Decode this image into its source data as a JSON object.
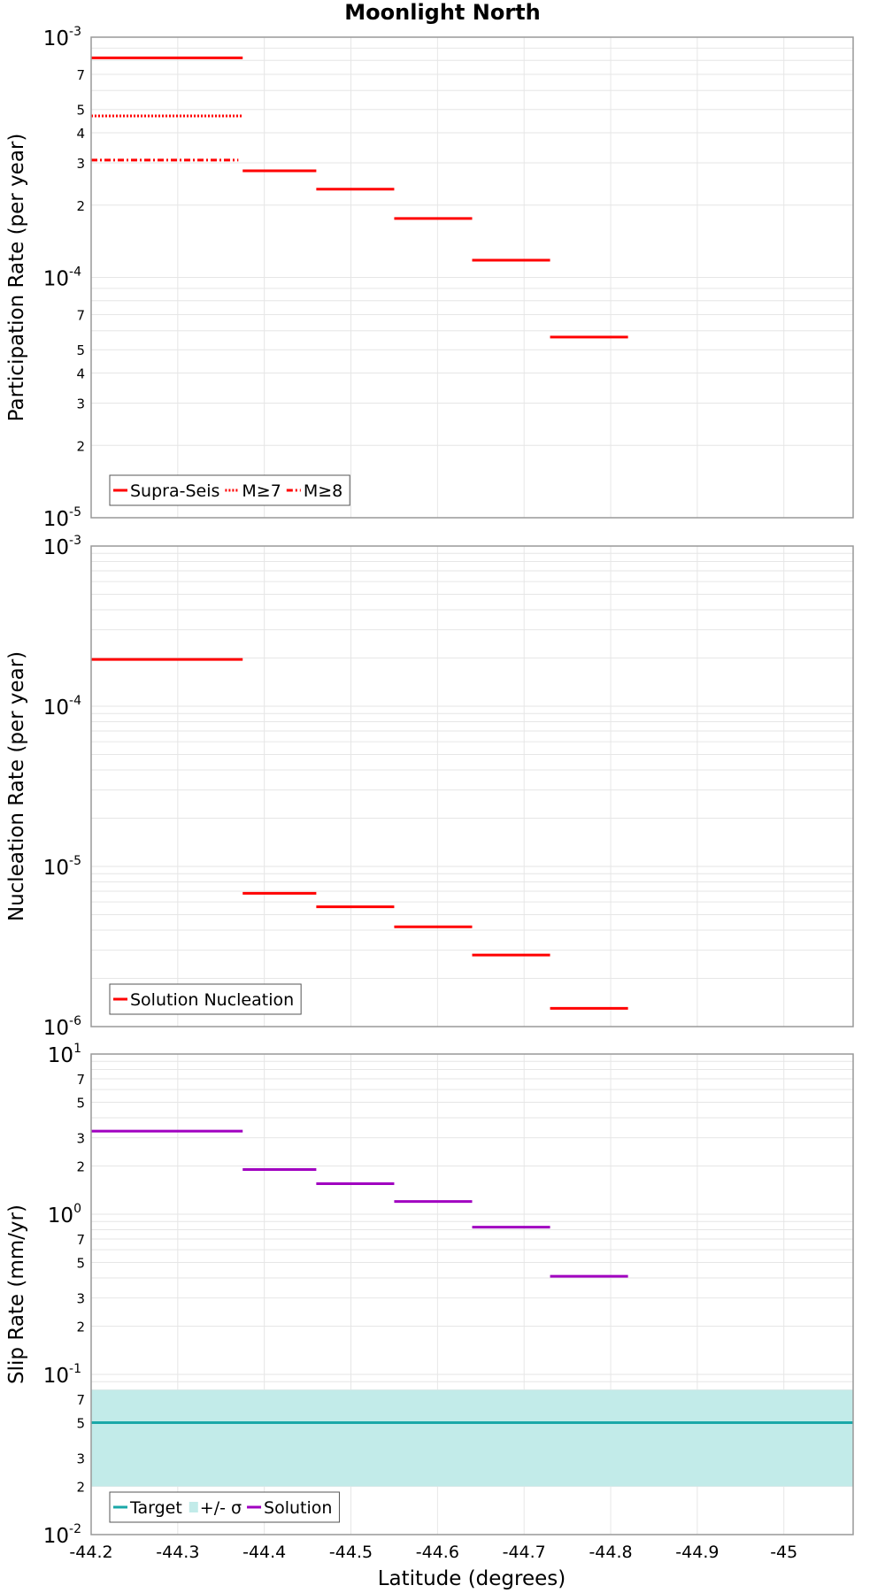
{
  "figure": {
    "title": "Moonlight North",
    "xlabel": "Latitude (degrees)",
    "x_ticks": [
      "-44.2",
      "-44.3",
      "-44.4",
      "-44.5",
      "-44.6",
      "-44.7",
      "-44.8",
      "-44.9",
      "-45"
    ]
  },
  "chart_data": [
    {
      "type": "line",
      "ylabel": "Participation Rate (per year)",
      "y_scale": "log",
      "xlim": [
        -44.2,
        -45.08
      ],
      "ylim": [
        1e-05,
        0.001
      ],
      "grid": true,
      "legend_position": "bottom-left",
      "major_ticks": [
        {
          "base": "10",
          "exp": "-5",
          "v": 1e-05
        },
        {
          "base": "10",
          "exp": "-4",
          "v": 0.0001
        },
        {
          "base": "10",
          "exp": "-3",
          "v": 0.001
        }
      ],
      "minor_tick_labels": [
        2,
        3,
        4,
        5,
        7
      ],
      "series": [
        {
          "name": "Supra-Seis",
          "color": "#ff0000",
          "style": "solid",
          "segments": [
            {
              "x": [
                -44.2,
                -44.375
              ],
              "y": 0.00082
            },
            {
              "x": [
                -44.375,
                -44.46
              ],
              "y": 0.000278
            },
            {
              "x": [
                -44.46,
                -44.55
              ],
              "y": 0.000233
            },
            {
              "x": [
                -44.55,
                -44.64
              ],
              "y": 0.000176
            },
            {
              "x": [
                -44.64,
                -44.73
              ],
              "y": 0.000118
            },
            {
              "x": [
                -44.73,
                -44.82
              ],
              "y": 5.65e-05
            }
          ]
        },
        {
          "name": "M≥7",
          "color": "#ff0000",
          "style": "dotted",
          "segments": [
            {
              "x": [
                -44.2,
                -44.375
              ],
              "y": 0.00047
            }
          ]
        },
        {
          "name": "M≥8",
          "color": "#ff0000",
          "style": "dashdot",
          "segments": [
            {
              "x": [
                -44.2,
                -44.37
              ],
              "y": 0.000308
            }
          ]
        }
      ]
    },
    {
      "type": "line",
      "ylabel": "Nucleation Rate (per year)",
      "y_scale": "log",
      "xlim": [
        -44.2,
        -45.08
      ],
      "ylim": [
        1e-06,
        0.001
      ],
      "grid": true,
      "legend_position": "bottom-left",
      "major_ticks": [
        {
          "base": "10",
          "exp": "-6",
          "v": 1e-06
        },
        {
          "base": "10",
          "exp": "-5",
          "v": 1e-05
        },
        {
          "base": "10",
          "exp": "-4",
          "v": 0.0001
        },
        {
          "base": "10",
          "exp": "-3",
          "v": 0.001
        }
      ],
      "minor_tick_labels": [],
      "series": [
        {
          "name": "Solution Nucleation",
          "color": "#ff0000",
          "style": "solid",
          "segments": [
            {
              "x": [
                -44.2,
                -44.375
              ],
              "y": 0.000196
            },
            {
              "x": [
                -44.375,
                -44.46
              ],
              "y": 6.8e-06
            },
            {
              "x": [
                -44.46,
                -44.55
              ],
              "y": 5.6e-06
            },
            {
              "x": [
                -44.55,
                -44.64
              ],
              "y": 4.2e-06
            },
            {
              "x": [
                -44.64,
                -44.73
              ],
              "y": 2.8e-06
            },
            {
              "x": [
                -44.73,
                -44.82
              ],
              "y": 1.3e-06
            }
          ]
        }
      ]
    },
    {
      "type": "line",
      "ylabel": "Slip Rate (mm/yr)",
      "y_scale": "log",
      "xlim": [
        -44.2,
        -45.08
      ],
      "ylim": [
        0.01,
        10
      ],
      "grid": true,
      "legend_position": "bottom-left",
      "major_ticks": [
        {
          "base": "10",
          "exp": "-2",
          "v": 0.01
        },
        {
          "base": "10",
          "exp": "-1",
          "v": 0.1
        },
        {
          "base": "10",
          "exp": "0",
          "v": 1
        },
        {
          "base": "10",
          "exp": "1",
          "v": 10
        }
      ],
      "minor_tick_labels": [
        2,
        3,
        5,
        7
      ],
      "band": {
        "name": "+/- σ",
        "color": "#c2ebe9",
        "y_low": 0.02,
        "y_high": 0.08
      },
      "series": [
        {
          "name": "Target",
          "color": "#1aa8a8",
          "style": "solid",
          "segments": [
            {
              "x": [
                -44.2,
                -45.08
              ],
              "y": 0.05
            }
          ]
        },
        {
          "name": "Solution",
          "color": "#a000c0",
          "style": "solid",
          "segments": [
            {
              "x": [
                -44.2,
                -44.375
              ],
              "y": 3.3
            },
            {
              "x": [
                -44.375,
                -44.46
              ],
              "y": 1.9
            },
            {
              "x": [
                -44.46,
                -44.55
              ],
              "y": 1.55
            },
            {
              "x": [
                -44.55,
                -44.64
              ],
              "y": 1.2
            },
            {
              "x": [
                -44.64,
                -44.73
              ],
              "y": 0.83
            },
            {
              "x": [
                -44.73,
                -44.82
              ],
              "y": 0.41
            }
          ]
        }
      ]
    }
  ]
}
